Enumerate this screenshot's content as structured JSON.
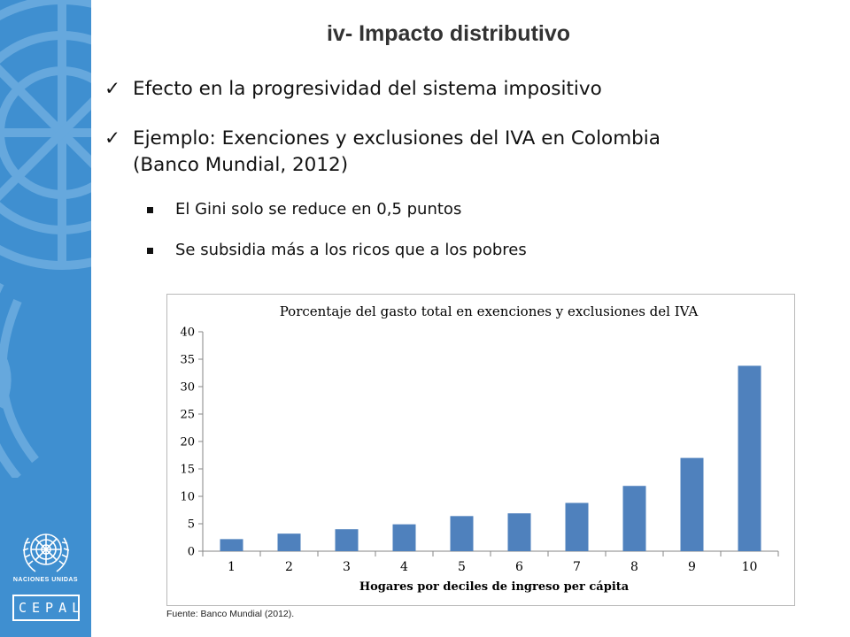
{
  "slide": {
    "title": "iv- Impacto distributivo",
    "bullets": [
      {
        "text": "Efecto en la progresividad del sistema impositivo"
      },
      {
        "line1": "Ejemplo: Exenciones y exclusiones del IVA en Colombia",
        "line2": "(Banco Mundial, 2012)"
      }
    ],
    "sub_bullets": [
      {
        "text": "El Gini solo se reduce en 0,5 puntos"
      },
      {
        "text": "Se subsidia más a los ricos que a los pobres"
      }
    ],
    "source": "Fuente: Banco Mundial (2012)."
  },
  "branding": {
    "org_line": "NACIONES UNIDAS",
    "cepal": "CEPAL",
    "sidebar_color": "#3f8fd0"
  },
  "chart_data": {
    "type": "bar",
    "title": "Porcentaje del gasto total en exenciones y exclusiones del IVA",
    "xlabel": "Hogares por deciles de ingreso per cápita",
    "ylabel": "",
    "categories": [
      "1",
      "2",
      "3",
      "4",
      "5",
      "6",
      "7",
      "8",
      "9",
      "10"
    ],
    "values": [
      2.2,
      3.2,
      4.0,
      4.9,
      6.4,
      6.9,
      8.8,
      11.9,
      17.0,
      33.8
    ],
    "ylim": [
      0,
      40
    ],
    "yticks": [
      0,
      5,
      10,
      15,
      20,
      25,
      30,
      35,
      40
    ],
    "bar_color": "#4f81bd",
    "grid": false,
    "legend": "none"
  }
}
